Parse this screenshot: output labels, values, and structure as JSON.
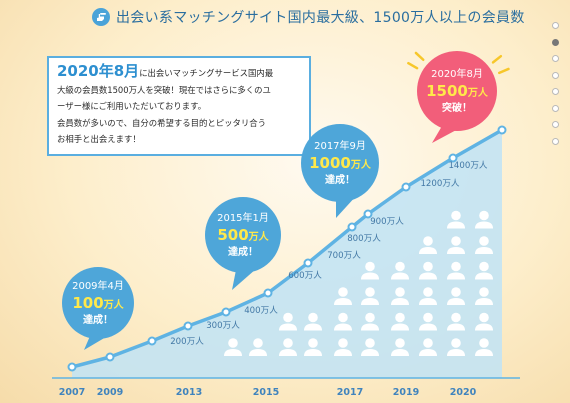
{
  "header": {
    "icon": "pointing-hand-icon",
    "title": "出会い系マッチングサイト国内最大級、1500万人以上の会員数"
  },
  "intro": {
    "date": "2020年8月",
    "line1_rest": "に出会いマッチングサービス国内最",
    "line2": "大級の会員数1500万人を突破！現在ではさらに多くのユ",
    "line3": "ーザー様にご利用いただいております。",
    "line4": "会員数が多いので、自分の希望する目的とピッタリ合う",
    "line5": "お相手と出会えます！"
  },
  "pagination": {
    "count": 8,
    "active_index": 1
  },
  "colors": {
    "line": "#5fb3e3",
    "area": "#bfe3f6",
    "bubble_blue": "#4ea6d9",
    "bubble_pink": "#f25e7a",
    "year_text": "#3f83bd",
    "value_text": "#4379a6"
  },
  "chart_data": {
    "type": "area",
    "x_labels": [
      "2007",
      "2009",
      "2013",
      "2015",
      "2017",
      "2019",
      "2020"
    ],
    "points": [
      {
        "label": ""
      },
      {
        "label": ""
      },
      {
        "label": "200万人"
      },
      {
        "label": "300万人"
      },
      {
        "label": "400万人"
      },
      {
        "label": "600万人"
      },
      {
        "label": "700万人"
      },
      {
        "label": "800万人"
      },
      {
        "label": "900万人"
      },
      {
        "label": "1200万人"
      },
      {
        "label": "1400万人"
      },
      {
        "label": ""
      }
    ],
    "callouts": [
      {
        "date": "2009年4月",
        "value": "100",
        "unit": "万人",
        "status": "達成！",
        "color": "blue"
      },
      {
        "date": "2015年1月",
        "value": "500",
        "unit": "万人",
        "status": "達成！",
        "color": "blue"
      },
      {
        "date": "2017年9月",
        "value": "1000",
        "unit": "万人",
        "status": "達成！",
        "color": "blue"
      },
      {
        "date": "2020年8月",
        "value": "1500",
        "unit": "万人",
        "status": "突破！",
        "color": "pink"
      }
    ],
    "people_columns": [
      1,
      1,
      2,
      2,
      3,
      4,
      4,
      5,
      6,
      6
    ]
  }
}
